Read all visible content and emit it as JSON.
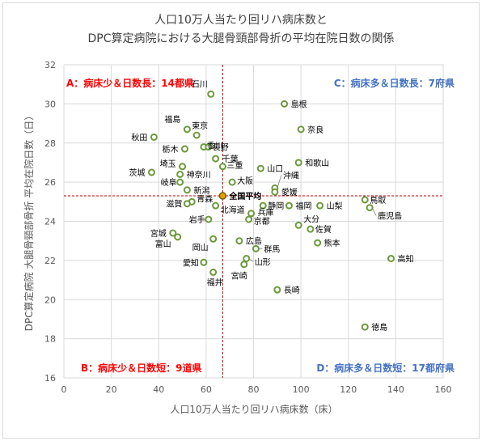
{
  "chart_data": {
    "type": "scatter",
    "title_lines": [
      "人口10万人当たり回リハ病床数と",
      "DPC算定病院における大腿骨頸部骨折の平均在院日数の関係"
    ],
    "xlabel": "人口10万人当たり回リハ病床数（床）",
    "ylabel": "DPC算定病院 大腿骨頸部骨折 平均在院日数（日）",
    "xlim": [
      0,
      160
    ],
    "ylim": [
      16,
      32
    ],
    "xticks": [
      "0",
      "20",
      "40",
      "60",
      "80",
      "100",
      "120",
      "140",
      "160"
    ],
    "yticks": [
      "16",
      "18",
      "20",
      "22",
      "24",
      "26",
      "28",
      "30",
      "32"
    ],
    "grid": true,
    "reference_lines": {
      "x": 67,
      "y": 25.3
    },
    "average": {
      "label": "全国平均",
      "x": 67,
      "y": 25.3
    },
    "quadrant_labels": {
      "top_left": "A：病床少＆日数長：14都県",
      "top_right": "C：病床多＆日数長：7府県",
      "bottom_left": "B：病床少＆日数短：9道県",
      "bottom_right": "D：病床多＆日数短：17都府県"
    },
    "points": [
      {
        "name": "石川",
        "x": 62,
        "y": 30.5
      },
      {
        "name": "島根",
        "x": 93,
        "y": 30.0
      },
      {
        "name": "福島",
        "x": 52,
        "y": 28.7
      },
      {
        "name": "東京",
        "x": 56,
        "y": 28.4
      },
      {
        "name": "奈良",
        "x": 100,
        "y": 28.7
      },
      {
        "name": "秋田",
        "x": 38,
        "y": 28.3
      },
      {
        "name": "香川",
        "x": 59,
        "y": 27.8
      },
      {
        "name": "栃木",
        "x": 51,
        "y": 27.7
      },
      {
        "name": "長野",
        "x": 61,
        "y": 27.8
      },
      {
        "name": "千葉",
        "x": 64,
        "y": 27.2
      },
      {
        "name": "埼玉",
        "x": 50,
        "y": 26.8
      },
      {
        "name": "三重",
        "x": 67,
        "y": 26.8
      },
      {
        "name": "山口",
        "x": 83,
        "y": 26.7
      },
      {
        "name": "和歌山",
        "x": 99,
        "y": 27.0
      },
      {
        "name": "茨城",
        "x": 37,
        "y": 26.5
      },
      {
        "name": "神奈川",
        "x": 49,
        "y": 26.4
      },
      {
        "name": "岐阜",
        "x": 49,
        "y": 26.0
      },
      {
        "name": "大阪",
        "x": 71,
        "y": 26.0
      },
      {
        "name": "沖縄",
        "x": 89,
        "y": 25.7
      },
      {
        "name": "新潟",
        "x": 52,
        "y": 25.6
      },
      {
        "name": "愛媛",
        "x": 89,
        "y": 25.5
      },
      {
        "name": "青森",
        "x": 54,
        "y": 25.0
      },
      {
        "name": "滋賀",
        "x": 52,
        "y": 24.9
      },
      {
        "name": "北海道",
        "x": 64,
        "y": 24.8
      },
      {
        "name": "静岡",
        "x": 84,
        "y": 24.8
      },
      {
        "name": "福岡",
        "x": 95,
        "y": 24.8
      },
      {
        "name": "山梨",
        "x": 108,
        "y": 24.8
      },
      {
        "name": "鳥取",
        "x": 127,
        "y": 25.1
      },
      {
        "name": "鹿児島",
        "x": 129,
        "y": 24.7
      },
      {
        "name": "兵庫",
        "x": 79,
        "y": 24.4
      },
      {
        "name": "京都",
        "x": 78,
        "y": 24.1
      },
      {
        "name": "岩手",
        "x": 61,
        "y": 24.1
      },
      {
        "name": "大分",
        "x": 99,
        "y": 23.8
      },
      {
        "name": "佐賀",
        "x": 104,
        "y": 23.6
      },
      {
        "name": "宮城",
        "x": 46,
        "y": 23.4
      },
      {
        "name": "富山",
        "x": 48,
        "y": 23.2
      },
      {
        "name": "岡山",
        "x": 63,
        "y": 23.1
      },
      {
        "name": "広島",
        "x": 74,
        "y": 23.0
      },
      {
        "name": "熊本",
        "x": 107,
        "y": 22.9
      },
      {
        "name": "群馬",
        "x": 81,
        "y": 22.6
      },
      {
        "name": "高知",
        "x": 138,
        "y": 22.1
      },
      {
        "name": "山形",
        "x": 77,
        "y": 22.1
      },
      {
        "name": "愛知",
        "x": 59,
        "y": 21.9
      },
      {
        "name": "宮崎",
        "x": 76,
        "y": 21.8
      },
      {
        "name": "福井",
        "x": 63,
        "y": 21.4
      },
      {
        "name": "長崎",
        "x": 90,
        "y": 20.5
      },
      {
        "name": "徳島",
        "x": 127,
        "y": 18.6
      }
    ]
  }
}
